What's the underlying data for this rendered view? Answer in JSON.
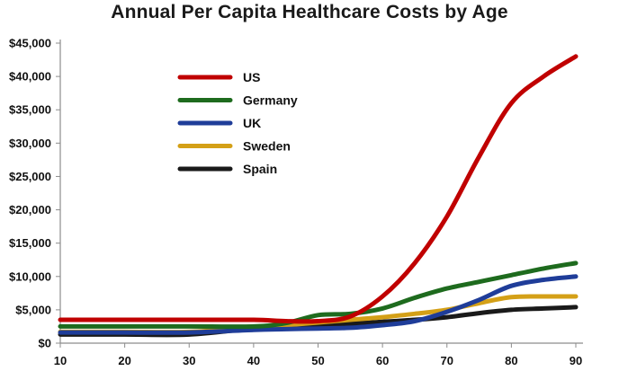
{
  "chart_data": {
    "type": "line",
    "title": "Annual Per Capita Healthcare Costs by Age",
    "xlabel": "",
    "ylabel": "",
    "x": [
      10,
      20,
      30,
      40,
      45,
      50,
      55,
      60,
      65,
      70,
      75,
      80,
      85,
      90
    ],
    "xticks": [
      10,
      20,
      30,
      40,
      50,
      60,
      70,
      80,
      90
    ],
    "xlim": [
      10,
      90
    ],
    "yticks": [
      0,
      5000,
      10000,
      15000,
      20000,
      25000,
      30000,
      35000,
      40000,
      45000
    ],
    "ytick_labels": [
      "$0",
      "$5,000",
      "$10,000",
      "$15,000",
      "$20,000",
      "$25,000",
      "$30,000",
      "$35,000",
      "$40,000",
      "$45,000"
    ],
    "ylim": [
      0,
      45000
    ],
    "grid": false,
    "legend_position": "top-left",
    "series": [
      {
        "name": "US",
        "color": "#c00000",
        "values": [
          3500,
          3500,
          3500,
          3500,
          3300,
          3300,
          4000,
          7000,
          12000,
          19000,
          28000,
          36000,
          40000,
          43000
        ]
      },
      {
        "name": "Germany",
        "color": "#1e6b1e",
        "values": [
          2500,
          2500,
          2500,
          2500,
          3000,
          4200,
          4400,
          5200,
          6800,
          8200,
          9200,
          10200,
          11200,
          12000
        ]
      },
      {
        "name": "UK",
        "color": "#1f3d99",
        "values": [
          1600,
          1600,
          1600,
          2000,
          2100,
          2200,
          2300,
          2700,
          3300,
          4700,
          6500,
          8600,
          9500,
          10000
        ]
      },
      {
        "name": "Sweden",
        "color": "#d4a017",
        "values": [
          1700,
          1700,
          1700,
          2300,
          2700,
          3100,
          3500,
          3900,
          4400,
          5000,
          6000,
          6900,
          7000,
          7000
        ]
      },
      {
        "name": "Spain",
        "color": "#1a1a1a",
        "values": [
          1300,
          1300,
          1300,
          2200,
          2400,
          2600,
          2900,
          3200,
          3500,
          3900,
          4500,
          5000,
          5200,
          5400
        ]
      }
    ]
  }
}
